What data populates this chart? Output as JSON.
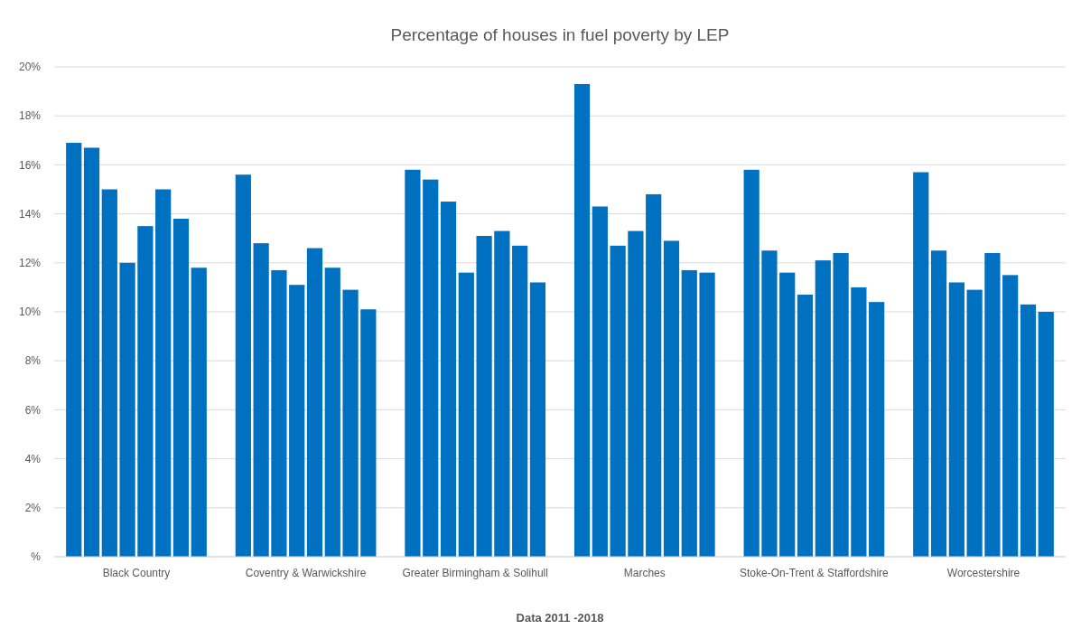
{
  "chart_data": {
    "type": "bar",
    "title": "Percentage of houses in fuel poverty by LEP",
    "xlabel": "Data 2011 -2018",
    "categories": [
      "Black Country",
      "Coventry & Warwickshire",
      "Greater Birmingham & Solihull",
      "Marches",
      "Stoke-On-Trent & Staffordshire",
      "Worcestershire"
    ],
    "series": [
      {
        "color": "#0070c0",
        "values": [
          16.9,
          15.6,
          15.8,
          19.3,
          15.8,
          15.7
        ]
      },
      {
        "color": "#0070c0",
        "values": [
          16.7,
          12.8,
          15.4,
          14.3,
          12.5,
          12.5
        ]
      },
      {
        "color": "#0070c0",
        "values": [
          15.0,
          11.7,
          14.5,
          12.7,
          11.6,
          11.2
        ]
      },
      {
        "color": "#0070c0",
        "values": [
          12.0,
          11.1,
          11.6,
          13.3,
          10.7,
          10.9
        ]
      },
      {
        "color": "#0070c0",
        "values": [
          13.5,
          12.6,
          13.1,
          14.8,
          12.1,
          12.4
        ]
      },
      {
        "color": "#0070c0",
        "values": [
          15.0,
          11.8,
          13.3,
          12.9,
          12.4,
          11.5
        ]
      },
      {
        "color": "#0070c0",
        "values": [
          13.8,
          10.9,
          12.7,
          11.7,
          11.0,
          10.3
        ]
      },
      {
        "color": "#0070c0",
        "values": [
          11.8,
          10.1,
          11.2,
          11.6,
          10.4,
          10.0
        ]
      }
    ],
    "ylim": [
      0,
      20
    ],
    "yticks": [
      {
        "value": 0,
        "label": "%"
      },
      {
        "value": 2,
        "label": "2%"
      },
      {
        "value": 4,
        "label": "4%"
      },
      {
        "value": 6,
        "label": "6%"
      },
      {
        "value": 8,
        "label": "8%"
      },
      {
        "value": 10,
        "label": "10%"
      },
      {
        "value": 12,
        "label": "12%"
      },
      {
        "value": 14,
        "label": "14%"
      },
      {
        "value": 16,
        "label": "16%"
      },
      {
        "value": 18,
        "label": "18%"
      },
      {
        "value": 20,
        "label": "20%"
      }
    ],
    "grid": "y"
  }
}
